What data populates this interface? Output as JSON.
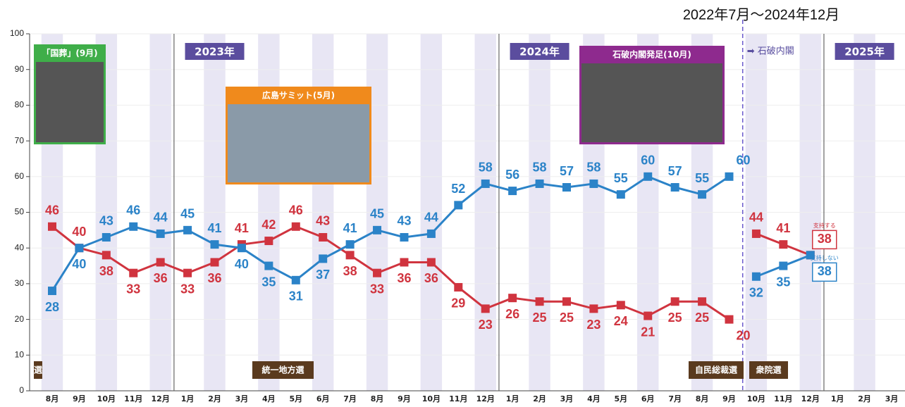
{
  "chart_data": {
    "type": "line",
    "title": "2022年7月～2024年12月",
    "categories": [
      "8月",
      "9月",
      "10月",
      "11月",
      "12月",
      "1月",
      "2月",
      "3月",
      "4月",
      "5月",
      "6月",
      "7月",
      "8月",
      "9月",
      "10月",
      "11月",
      "12月",
      "1月",
      "2月",
      "3月",
      "4月",
      "5月",
      "6月",
      "7月",
      "8月",
      "9月",
      "10月",
      "11月",
      "12月",
      "1月",
      "2月",
      "3月"
    ],
    "ylim": [
      0,
      100
    ],
    "yticks": [
      0,
      10,
      20,
      30,
      40,
      50,
      60,
      70,
      80,
      90,
      100
    ],
    "series": [
      {
        "color": "#d0343f",
        "values": [
          46,
          40,
          38,
          33,
          36,
          33,
          36,
          41,
          42,
          46,
          43,
          38,
          33,
          36,
          36,
          29,
          23,
          26,
          25,
          25,
          23,
          24,
          21,
          25,
          25,
          20,
          null,
          null,
          null,
          null,
          null,
          null
        ]
      },
      {
        "color": "#2b83c8",
        "values": [
          28,
          40,
          43,
          46,
          44,
          45,
          41,
          40,
          35,
          31,
          37,
          41,
          45,
          43,
          44,
          52,
          58,
          56,
          58,
          57,
          58,
          55,
          60,
          57,
          55,
          60,
          null,
          null,
          null,
          null,
          null,
          null
        ]
      },
      {
        "name": "支持する",
        "color": "#d0343f",
        "values": [
          null,
          null,
          null,
          null,
          null,
          null,
          null,
          null,
          null,
          null,
          null,
          null,
          null,
          null,
          null,
          null,
          null,
          null,
          null,
          null,
          null,
          null,
          null,
          null,
          null,
          null,
          44,
          41,
          38,
          null,
          null,
          null
        ]
      },
      {
        "name": "支持しない",
        "color": "#2b83c8",
        "values": [
          null,
          null,
          null,
          null,
          null,
          null,
          null,
          null,
          null,
          null,
          null,
          null,
          null,
          null,
          null,
          null,
          null,
          null,
          null,
          null,
          null,
          null,
          null,
          null,
          null,
          null,
          32,
          35,
          38,
          null,
          null,
          null
        ]
      }
    ],
    "year_labels": [
      "2023年",
      "2024年",
      "2025年"
    ],
    "cabinet_label": "➡ 石破内閣",
    "events": [
      "選",
      "統一地方選",
      "自民総裁選",
      "衆院選"
    ],
    "photos": [
      "「国葬」(9月)",
      "広島サミット(5月)",
      "石破内閣発足(10月)"
    ]
  }
}
